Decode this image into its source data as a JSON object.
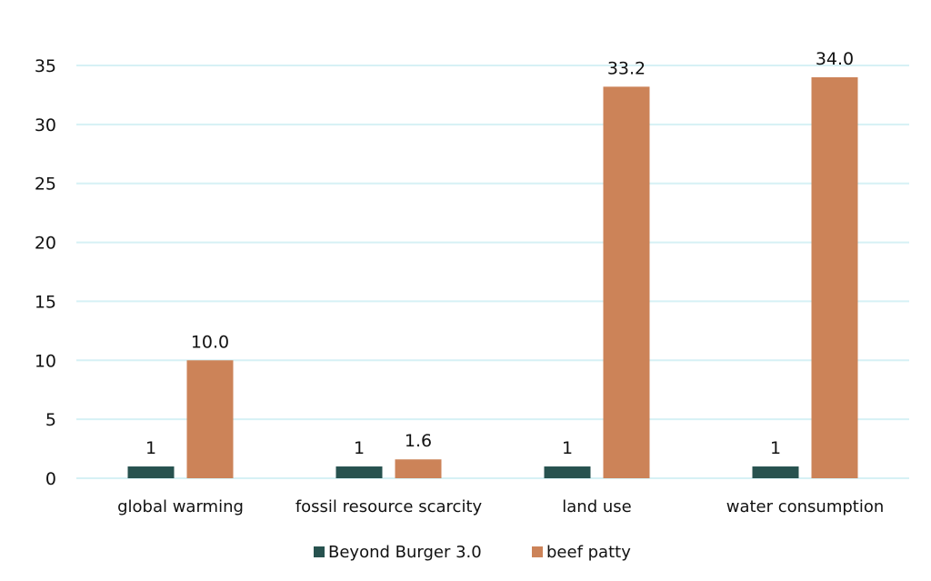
{
  "chart_data": {
    "type": "bar",
    "title": "",
    "xlabel": "",
    "ylabel": "",
    "categories": [
      "global warming",
      "fossil resource scarcity",
      "land use",
      "water consumption"
    ],
    "series": [
      {
        "name": "Beyond Burger 3.0",
        "color": "#27524f",
        "values": [
          1,
          1,
          1,
          1
        ],
        "labels": [
          "1",
          "1",
          "1",
          "1"
        ]
      },
      {
        "name": "beef patty",
        "color": "#cc8358",
        "values": [
          10.0,
          1.6,
          33.2,
          34.0
        ],
        "labels": [
          "10.0",
          "1.6",
          "33.2",
          "34.0"
        ]
      }
    ],
    "ylim": [
      0,
      35
    ],
    "yticks": [
      0,
      5,
      10,
      15,
      20,
      25,
      30,
      35
    ],
    "grid": true,
    "grid_color": "#d6f1f5",
    "legend": "bottom-center"
  }
}
